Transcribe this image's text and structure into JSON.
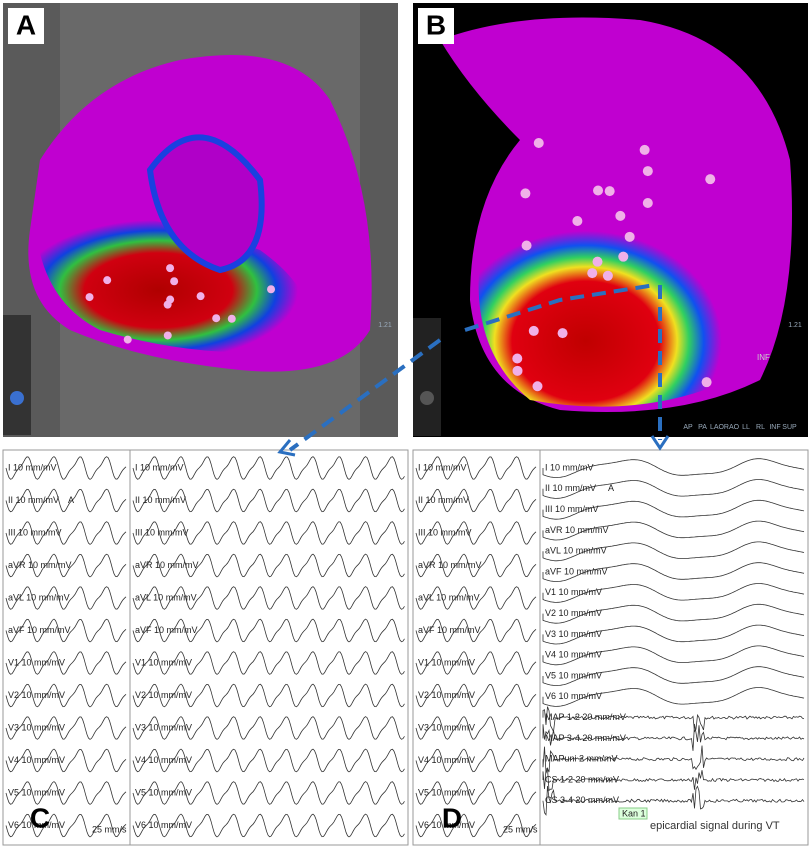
{
  "panel_a": {
    "label": "A",
    "scale": "1.21"
  },
  "panel_b": {
    "label": "B",
    "scale": "1.21",
    "orientation": "INF",
    "view_buttons": [
      "AP",
      "PA",
      "LAO",
      "RAO",
      "LL",
      "RL",
      "INF",
      "SUP"
    ]
  },
  "panel_c": {
    "label": "C",
    "speed": "25 mm/s",
    "marker": "A",
    "leads_left": [
      "I 10 mm/mV",
      "II 10 mm/mV",
      "III 10 mm/mV",
      "aVR 10 mm/mV",
      "aVL 10 mm/mV",
      "aVF 10 mm/mV",
      "V1 10 mm/mV",
      "V2 10 mm/mV",
      "V3 10 mm/mV",
      "V4 10 mm/mV",
      "V5 10 mm/mV",
      "V6 10 mm/mV"
    ],
    "leads_right": [
      "I 10 mm/mV",
      "II 10 mm/mV",
      "III 10 mm/mV",
      "aVR 10 mm/mV",
      "aVL 10 mm/mV",
      "aVF 10 mm/mV",
      "V1 10 mm/mV",
      "V2 10 mm/mV",
      "V3 10 mm/mV",
      "V4 10 mm/mV",
      "V5 10 mm/mV",
      "V6 10 mm/mV"
    ]
  },
  "panel_d": {
    "label": "D",
    "speed": "25 mm/s",
    "marker": "A",
    "annotation": "epicardial signal during VT",
    "catheter_tag": "Kan 1",
    "leads_left": [
      "I 10 mm/mV",
      "II 10 mm/mV",
      "III 10 mm/mV",
      "aVR 10 mm/mV",
      "aVL 10 mm/mV",
      "aVF 10 mm/mV",
      "V1 10 mm/mV",
      "V2 10 mm/mV",
      "V3 10 mm/mV",
      "V4 10 mm/mV",
      "V5 10 mm/mV",
      "V6 10 mm/mV"
    ],
    "leads_right": [
      "I 10 mm/mV",
      "II 10 mm/mV",
      "III 10 mm/mV",
      "aVR 10 mm/mV",
      "aVL 10 mm/mV",
      "aVF 10 mm/mV",
      "V1 10 mm/mV",
      "V2 10 mm/mV",
      "V3 10 mm/mV",
      "V4 10 mm/mV",
      "V5 10 mm/mV",
      "V6 10 mm/mV",
      "MAP 1-2 20 mm/mV",
      "MAP 3-4 20 mm/mV",
      "MAPuni 2 mm/mV",
      "CS 1-2 20 mm/mV",
      "CS 3-4 20 mm/mV"
    ]
  }
}
